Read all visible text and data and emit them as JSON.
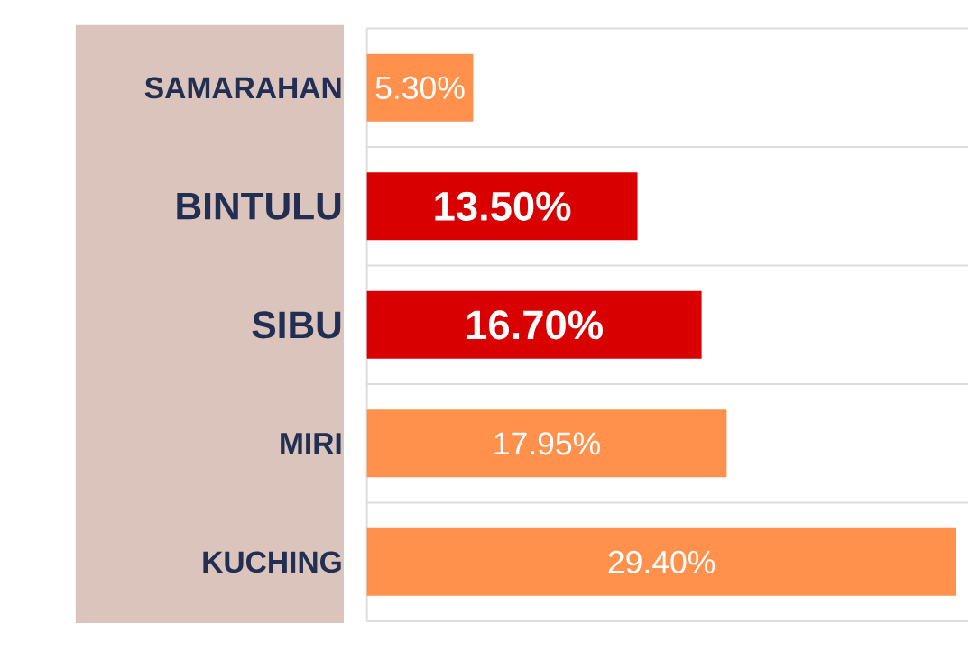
{
  "chart_data": {
    "type": "bar",
    "orientation": "horizontal",
    "categories": [
      "SAMARAHAN",
      "BINTULU",
      "SIBU",
      "MIRI",
      "KUCHING"
    ],
    "values": [
      5.3,
      13.5,
      16.7,
      17.95,
      29.4
    ],
    "value_labels": [
      "5.30%",
      "13.50%",
      "16.70%",
      "17.95%",
      "29.40%"
    ],
    "colors": [
      "#ff914d",
      "#d80000",
      "#d80000",
      "#ff914d",
      "#ff914d"
    ],
    "xlim": [
      0,
      30
    ],
    "tick_labels": "y",
    "grid": "y"
  }
}
